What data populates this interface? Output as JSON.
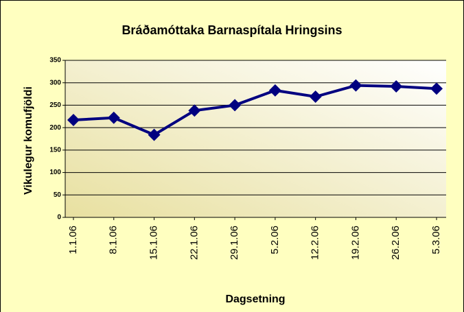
{
  "chart_data": {
    "type": "line",
    "title": "Bráðamóttaka Barnaspítala Hringsins",
    "x_label": "Dagsetning",
    "y_label": "Vikulegur komufjöldi",
    "categories": [
      "1.1.06",
      "8.1.06",
      "15.1.06",
      "22.1.06",
      "29.1.06",
      "5.2.06",
      "12.2.06",
      "19.2.06",
      "26.2.06",
      "5.3.06"
    ],
    "series": [
      {
        "name": "Vikulegur komufjöldi",
        "color": "#000080",
        "values": [
          217,
          222,
          184,
          238,
          250,
          283,
          269,
          294,
          292,
          287
        ]
      }
    ],
    "ylim": [
      0,
      350
    ],
    "yticks": [
      0,
      50,
      100,
      150,
      200,
      250,
      300,
      350
    ],
    "grid": true
  }
}
